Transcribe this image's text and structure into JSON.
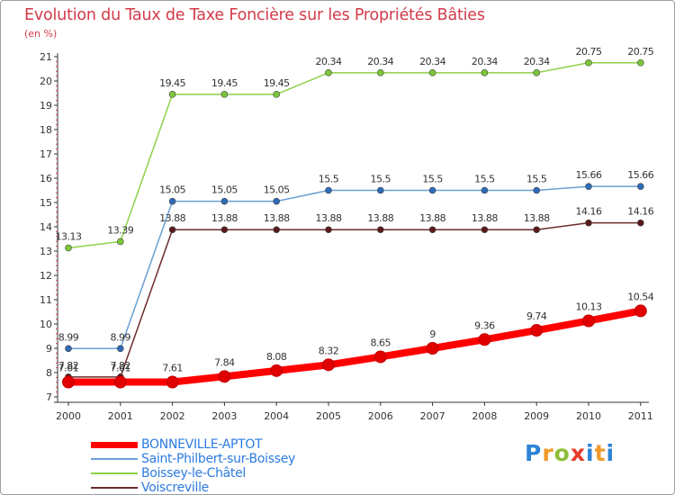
{
  "chart_data": {
    "type": "line",
    "title": "Evolution du Taux de Taxe Foncière sur les Propriétés Bâties",
    "ylabel": "(en %)",
    "xlabel": "",
    "ylim": [
      7,
      21
    ],
    "yticks": [
      "7",
      "8",
      "9",
      "10",
      "11",
      "12",
      "13",
      "14",
      "15",
      "16",
      "17",
      "18",
      "19",
      "20",
      "21"
    ],
    "categories": [
      "2000",
      "2001",
      "2002",
      "2003",
      "2004",
      "2005",
      "2006",
      "2007",
      "2008",
      "2009",
      "2010",
      "2011"
    ],
    "series": [
      {
        "name": "Boissey-le-Châtel",
        "color": "#8ed14a",
        "marker": "#7cc63a",
        "width": 1.5,
        "values": [
          13.13,
          13.39,
          19.45,
          19.45,
          19.45,
          20.34,
          20.34,
          20.34,
          20.34,
          20.34,
          20.75,
          20.75
        ],
        "labels": [
          "13.13",
          "13.39",
          "19.45",
          "19.45",
          "19.45",
          "20.34",
          "20.34",
          "20.34",
          "20.34",
          "20.34",
          "20.75",
          "20.75"
        ]
      },
      {
        "name": "Saint-Philbert-sur-Boissey",
        "color": "#6a9fd4",
        "marker": "#2e6bb8",
        "width": 1.5,
        "values": [
          8.99,
          8.99,
          15.05,
          15.05,
          15.05,
          15.5,
          15.5,
          15.5,
          15.5,
          15.5,
          15.66,
          15.66
        ],
        "labels": [
          "8.99",
          "8.99",
          "15.05",
          "15.05",
          "15.05",
          "15.5",
          "15.5",
          "15.5",
          "15.5",
          "15.5",
          "15.66",
          "15.66"
        ]
      },
      {
        "name": "Voiscreville",
        "color": "#6b2b2b",
        "marker": "#5a1a1a",
        "width": 1.5,
        "values": [
          7.82,
          7.82,
          13.88,
          13.88,
          13.88,
          13.88,
          13.88,
          13.88,
          13.88,
          13.88,
          14.16,
          14.16
        ],
        "labels": [
          "7.82",
          "7.82",
          "13.88",
          "13.88",
          "13.88",
          "13.88",
          "13.88",
          "13.88",
          "13.88",
          "13.88",
          "14.16",
          "14.16"
        ]
      },
      {
        "name": "BONNEVILLE-APTOT",
        "color": "#ff0000",
        "marker": "#e00000",
        "width": 8,
        "values": [
          7.61,
          7.61,
          7.61,
          7.84,
          8.08,
          8.32,
          8.65,
          9,
          9.36,
          9.74,
          10.13,
          10.54
        ],
        "labels": [
          "7.61",
          "7.61",
          "7.61",
          "7.84",
          "8.08",
          "8.32",
          "8.65",
          "9",
          "9.36",
          "9.74",
          "10.13",
          "10.54"
        ]
      }
    ],
    "legend": [
      {
        "name": "BONNEVILLE-APTOT",
        "color": "#ff0000",
        "width": 7
      },
      {
        "name": "Saint-Philbert-sur-Boissey",
        "color": "#6a9fd4",
        "width": 2
      },
      {
        "name": "Boissey-le-Châtel",
        "color": "#8ed14a",
        "width": 2
      },
      {
        "name": "Voiscreville",
        "color": "#6b2b2b",
        "width": 2
      }
    ],
    "legend_position": "bottom-left",
    "grid": false
  },
  "logo": {
    "letters": [
      "P",
      "r",
      "o",
      "x",
      "i",
      "t",
      "i"
    ]
  }
}
